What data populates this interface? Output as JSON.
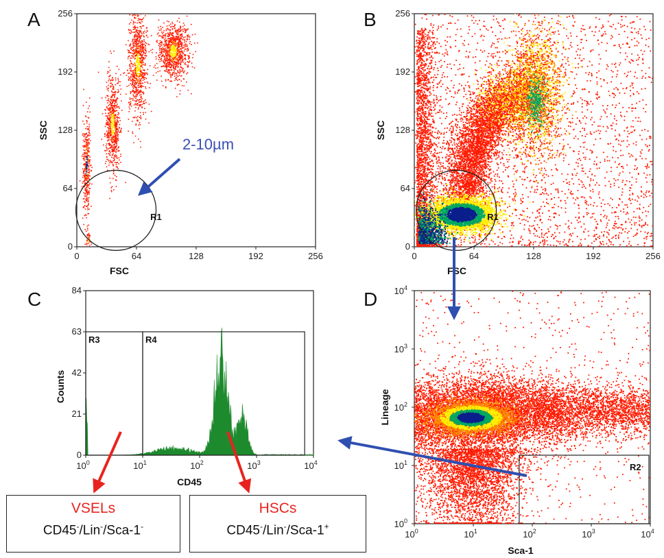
{
  "colors": {
    "arrow_blue": "#2f4fb0",
    "arrow_red": "#e8231f",
    "annotation_blue": "#3a4fb5",
    "hist_fill": "#1e8a2e",
    "density_low": "#ff1a00",
    "density_mid": "#ffee00",
    "density_high": "#00a860",
    "density_peak": "#0a1f8c"
  },
  "chart_data": [
    {
      "panel": "A",
      "type": "scatter",
      "xlabel": "FSC",
      "ylabel": "SSC",
      "xlim": [
        0,
        256
      ],
      "ylim": [
        0,
        256
      ],
      "xticks": [
        "0",
        "64",
        "128",
        "192",
        "256"
      ],
      "yticks": [
        "0",
        "64",
        "128",
        "192",
        "256"
      ],
      "populations": [
        {
          "x": 10,
          "y": 90,
          "sx": 2,
          "sy": 28,
          "n": 380
        },
        {
          "x": 12,
          "y": 8,
          "sx": 1.5,
          "sy": 4,
          "n": 40
        },
        {
          "x": 38,
          "y": 135,
          "sx": 4,
          "sy": 26,
          "n": 700
        },
        {
          "x": 65,
          "y": 200,
          "sx": 5,
          "sy": 28,
          "n": 900
        },
        {
          "x": 103,
          "y": 215,
          "sx": 8,
          "sy": 15,
          "n": 1000
        }
      ],
      "gates": [
        {
          "label": "R1",
          "shape": "circle",
          "cx": 42,
          "cy": 40,
          "r": 43
        }
      ],
      "annotations": [
        {
          "text": "2-10µm"
        }
      ]
    },
    {
      "panel": "B",
      "type": "scatter",
      "xlabel": "FSC",
      "ylabel": "SSC",
      "xlim": [
        0,
        256
      ],
      "ylim": [
        0,
        256
      ],
      "xticks": [
        "0",
        "64",
        "128",
        "192",
        "256"
      ],
      "yticks": [
        "0",
        "64",
        "128",
        "192",
        "256"
      ],
      "gates": [
        {
          "label": "R1",
          "shape": "circle",
          "cx": 45,
          "cy": 40,
          "r": 43
        }
      ]
    },
    {
      "panel": "C",
      "type": "histogram",
      "xlabel": "CD45",
      "ylabel": "Counts",
      "xscale": "log",
      "xlim": [
        1,
        10000
      ],
      "ylim": [
        0,
        84
      ],
      "xticks": [
        {
          "base": "10",
          "exp": "0"
        },
        {
          "base": "10",
          "exp": "1"
        },
        {
          "base": "10",
          "exp": "2"
        },
        {
          "base": "10",
          "exp": "3"
        },
        {
          "base": "10",
          "exp": "4"
        }
      ],
      "yticks": [
        "0",
        "21",
        "42",
        "63",
        "84"
      ],
      "peak_value": 55,
      "gates": [
        {
          "label": "R3",
          "x": [
            1,
            10
          ],
          "y": [
            0,
            63
          ]
        },
        {
          "label": "R4",
          "x": [
            10,
            7000
          ],
          "y": [
            0,
            63
          ]
        }
      ]
    },
    {
      "panel": "D",
      "type": "scatter",
      "xlabel": "Sca-1",
      "ylabel": "Lineage",
      "xscale": "log",
      "yscale": "log",
      "xlim": [
        1,
        10000
      ],
      "ylim": [
        1,
        10000
      ],
      "xticks": [
        {
          "base": "10",
          "exp": "0"
        },
        {
          "base": "10",
          "exp": "1"
        },
        {
          "base": "10",
          "exp": "2"
        },
        {
          "base": "10",
          "exp": "3"
        },
        {
          "base": "10",
          "exp": "4"
        }
      ],
      "yticks": [
        {
          "base": "10",
          "exp": "0"
        },
        {
          "base": "10",
          "exp": "1"
        },
        {
          "base": "10",
          "exp": "2"
        },
        {
          "base": "10",
          "exp": "3"
        },
        {
          "base": "10",
          "exp": "4"
        }
      ],
      "gates": [
        {
          "label": "R2",
          "x": [
            60,
            10000
          ],
          "y": [
            1,
            15
          ]
        }
      ]
    }
  ],
  "boxes": [
    {
      "title": "VSELs",
      "pheno": [
        {
          "t": "CD45",
          "s": "-"
        },
        {
          "t": "/Lin",
          "s": "-"
        },
        {
          "t": "/Sca-1",
          "s": "-"
        }
      ]
    },
    {
      "title": "HSCs",
      "pheno": [
        {
          "t": "CD45",
          "s": "-"
        },
        {
          "t": "/Lin",
          "s": "-"
        },
        {
          "t": "/Sca-1",
          "s": "+"
        }
      ]
    }
  ]
}
